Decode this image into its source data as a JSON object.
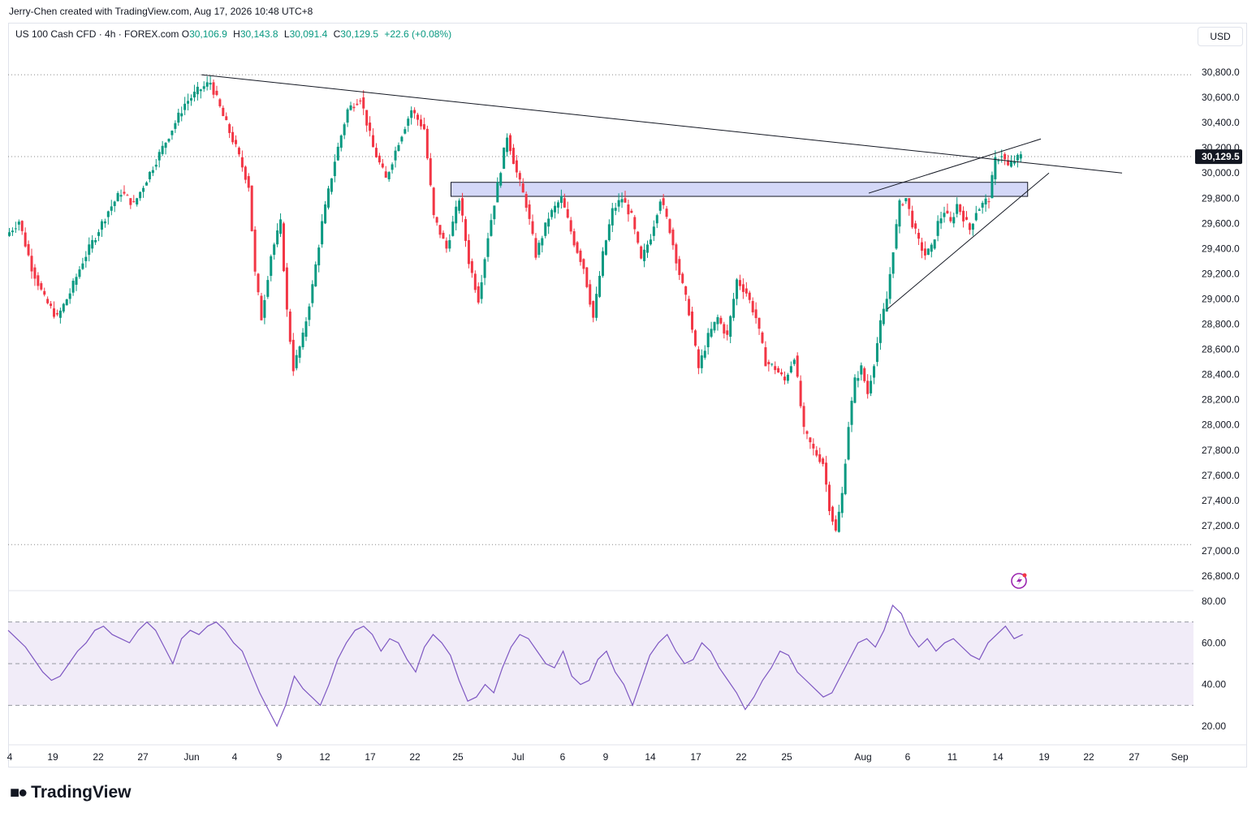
{
  "header": {
    "credit": "Jerry-Chen created with TradingView.com, Aug 17, 2026 10:48 UTC+8",
    "symbol": "US 100 Cash CFD · 4h · FOREX.com",
    "open_label": "O",
    "open": "30,106.9",
    "high_label": "H",
    "high": "30,143.8",
    "low_label": "L",
    "low": "30,091.4",
    "close_label": "C",
    "close": "30,129.5",
    "change": "+22.6 (+0.08%)",
    "currency": "USD"
  },
  "colors": {
    "up": "#089981",
    "down": "#f23645",
    "rsi": "#7e57c2",
    "rsi_band": "#ede7f6",
    "zone": "#c5cbf5",
    "price_tag": "#131722"
  },
  "chart_data": [
    {
      "type": "candlestick",
      "symbol": "US 100 Cash CFD",
      "interval": "4h",
      "y_ticks": [
        26800,
        27000,
        27200,
        27400,
        27600,
        27800,
        28000,
        28200,
        28400,
        28600,
        28800,
        29000,
        29200,
        29400,
        29600,
        29800,
        30000,
        30200,
        30400,
        30600,
        30800
      ],
      "y_tick_labels": [
        "26,800.0",
        "27,000.0",
        "27,200.0",
        "27,400.0",
        "27,600.0",
        "27,800.0",
        "28,000.0",
        "28,200.0",
        "28,400.0",
        "28,600.0",
        "28,800.0",
        "29,000.0",
        "29,200.0",
        "29,400.0",
        "29,600.0",
        "29,800.0",
        "30,000.0",
        "30,200.0",
        "30,400.0",
        "30,600.0",
        "30,800.0"
      ],
      "x_tick_labels": [
        "4",
        "19",
        "22",
        "27",
        "Jun",
        "4",
        "9",
        "12",
        "17",
        "22",
        "25",
        "Jul",
        "6",
        "9",
        "14",
        "17",
        "22",
        "25",
        "Aug",
        "6",
        "11",
        "14",
        "19",
        "22",
        "27",
        "Sep"
      ],
      "last_price": 30129.5,
      "last_price_label": "30,129.5",
      "price_path": [
        [
          0,
          29500
        ],
        [
          4,
          29620
        ],
        [
          8,
          29250
        ],
        [
          12,
          29000
        ],
        [
          16,
          28850
        ],
        [
          20,
          29050
        ],
        [
          24,
          29300
        ],
        [
          28,
          29500
        ],
        [
          32,
          29700
        ],
        [
          36,
          29850
        ],
        [
          40,
          29750
        ],
        [
          44,
          29950
        ],
        [
          48,
          30150
        ],
        [
          52,
          30350
        ],
        [
          56,
          30550
        ],
        [
          60,
          30650
        ],
        [
          64,
          30720
        ],
        [
          68,
          30450
        ],
        [
          72,
          30200
        ],
        [
          76,
          29900
        ],
        [
          78,
          29200
        ],
        [
          80,
          28850
        ],
        [
          83,
          29350
        ],
        [
          86,
          29600
        ],
        [
          88,
          28900
        ],
        [
          90,
          28450
        ],
        [
          93,
          28700
        ],
        [
          96,
          29100
        ],
        [
          99,
          29600
        ],
        [
          103,
          30100
        ],
        [
          107,
          30500
        ],
        [
          111,
          30600
        ],
        [
          115,
          30200
        ],
        [
          119,
          29950
        ],
        [
          123,
          30250
        ],
        [
          127,
          30500
        ],
        [
          131,
          30350
        ],
        [
          134,
          29650
        ],
        [
          138,
          29400
        ],
        [
          142,
          29800
        ],
        [
          145,
          29300
        ],
        [
          148,
          29000
        ],
        [
          151,
          29500
        ],
        [
          154,
          29900
        ],
        [
          157,
          30300
        ],
        [
          160,
          30000
        ],
        [
          163,
          29750
        ],
        [
          166,
          29350
        ],
        [
          170,
          29650
        ],
        [
          174,
          29800
        ],
        [
          178,
          29450
        ],
        [
          181,
          29250
        ],
        [
          184,
          28850
        ],
        [
          187,
          29350
        ],
        [
          190,
          29700
        ],
        [
          193,
          29800
        ],
        [
          196,
          29650
        ],
        [
          199,
          29300
        ],
        [
          202,
          29500
        ],
        [
          205,
          29800
        ],
        [
          208,
          29550
        ],
        [
          211,
          29200
        ],
        [
          214,
          28900
        ],
        [
          217,
          28450
        ],
        [
          220,
          28700
        ],
        [
          223,
          28850
        ],
        [
          226,
          28700
        ],
        [
          229,
          29150
        ],
        [
          232,
          29050
        ],
        [
          235,
          28850
        ],
        [
          238,
          28500
        ],
        [
          241,
          28450
        ],
        [
          244,
          28350
        ],
        [
          247,
          28550
        ],
        [
          250,
          27950
        ],
        [
          253,
          27800
        ],
        [
          256,
          27700
        ],
        [
          258,
          27350
        ],
        [
          260,
          27150
        ],
        [
          262,
          27450
        ],
        [
          264,
          28000
        ],
        [
          266,
          28350
        ],
        [
          268,
          28450
        ],
        [
          270,
          28250
        ],
        [
          272,
          28500
        ],
        [
          274,
          28800
        ],
        [
          276,
          29000
        ],
        [
          278,
          29400
        ],
        [
          280,
          29750
        ],
        [
          282,
          29800
        ],
        [
          284,
          29600
        ],
        [
          286,
          29450
        ],
        [
          288,
          29350
        ],
        [
          290,
          29400
        ],
        [
          292,
          29600
        ],
        [
          294,
          29700
        ],
        [
          296,
          29600
        ],
        [
          298,
          29750
        ],
        [
          300,
          29650
        ],
        [
          302,
          29550
        ],
        [
          304,
          29700
        ],
        [
          306,
          29750
        ],
        [
          308,
          29800
        ],
        [
          310,
          30100
        ],
        [
          312,
          30150
        ],
        [
          314,
          30050
        ],
        [
          316,
          30100
        ],
        [
          318,
          30130
        ]
      ],
      "annotations": {
        "descending_trendline": [
          [
            30,
            30780
          ],
          [
            140,
            30160
          ]
        ],
        "rising_wedge_upper": [
          [
            100,
            29820
          ],
          [
            130,
            30270
          ]
        ],
        "rising_wedge_lower": [
          [
            100,
            28920
          ],
          [
            130,
            30000
          ]
        ],
        "resistance_zone": [
          29840,
          29900
        ],
        "dotted_levels": [
          30780,
          30130,
          27050
        ]
      }
    },
    {
      "type": "line",
      "indicator": "RSI",
      "y_ticks": [
        20,
        40,
        60,
        80
      ],
      "y_tick_labels": [
        "20.00",
        "40.00",
        "60.00",
        "80.00"
      ],
      "band": [
        30,
        70
      ],
      "midline": 50,
      "values": [
        66,
        62,
        58,
        52,
        46,
        42,
        44,
        50,
        56,
        60,
        66,
        68,
        64,
        62,
        60,
        66,
        70,
        66,
        58,
        50,
        62,
        66,
        64,
        68,
        70,
        66,
        60,
        56,
        46,
        36,
        28,
        20,
        30,
        44,
        38,
        34,
        30,
        40,
        52,
        60,
        66,
        68,
        64,
        56,
        62,
        60,
        52,
        46,
        58,
        64,
        60,
        54,
        42,
        32,
        34,
        40,
        36,
        48,
        58,
        64,
        62,
        56,
        50,
        48,
        56,
        44,
        40,
        42,
        52,
        56,
        46,
        40,
        30,
        42,
        54,
        60,
        64,
        56,
        50,
        52,
        60,
        56,
        48,
        42,
        36,
        28,
        34,
        42,
        48,
        56,
        54,
        46,
        42,
        38,
        34,
        36,
        44,
        52,
        60,
        62,
        58,
        66,
        78,
        74,
        64,
        58,
        62,
        56,
        60,
        62,
        58,
        54,
        52,
        60,
        64,
        68,
        62,
        64
      ]
    }
  ]
}
